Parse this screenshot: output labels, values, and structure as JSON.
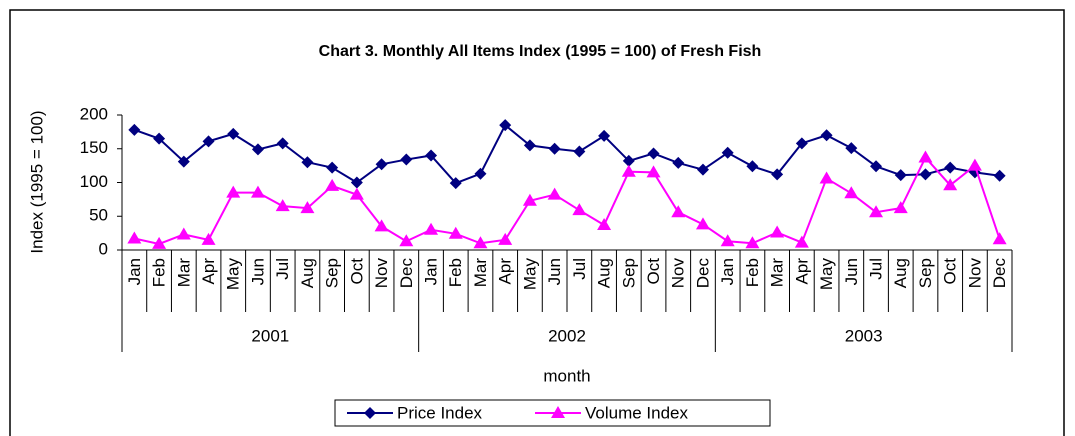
{
  "chart_data": {
    "type": "line",
    "title": "Chart 3.  Monthly All Items Index (1995 = 100) of Fresh Fish",
    "y_label": "Index (1995 = 100)",
    "x_label": "month",
    "categories": [
      "Jan",
      "Feb",
      "Mar",
      "Apr",
      "May",
      "Jun",
      "Jul",
      "Aug",
      "Sep",
      "Oct",
      "Nov",
      "Dec",
      "Jan",
      "Feb",
      "Mar",
      "Apr",
      "May",
      "Jun",
      "Jul",
      "Aug",
      "Sep",
      "Oct",
      "Nov",
      "Dec",
      "Jan",
      "Feb",
      "Mar",
      "Apr",
      "May",
      "Jun",
      "Jul",
      "Aug",
      "Sep",
      "Oct",
      "Nov",
      "Dec"
    ],
    "groups": [
      "2001",
      "2002",
      "2003"
    ],
    "series": [
      {
        "name": "Price Index",
        "color": "#000080",
        "marker": "diamond",
        "values": [
          178,
          165,
          131,
          161,
          172,
          149,
          158,
          130,
          122,
          100,
          127,
          134,
          140,
          99,
          113,
          185,
          155,
          150,
          146,
          169,
          132,
          143,
          129,
          119,
          144,
          124,
          112,
          158,
          170,
          151,
          124,
          111,
          112,
          122,
          115,
          110
        ]
      },
      {
        "name": "Volume Index",
        "color": "#ff00ff",
        "marker": "triangle",
        "values": [
          17,
          9,
          23,
          15,
          85,
          85,
          65,
          62,
          95,
          82,
          35,
          13,
          30,
          24,
          10,
          15,
          73,
          82,
          59,
          37,
          116,
          115,
          56,
          38,
          13,
          10,
          26,
          11,
          106,
          84,
          56,
          62,
          137,
          96,
          125,
          16
        ]
      }
    ],
    "ylim": [
      0,
      200
    ],
    "yticks": [
      0,
      50,
      100,
      150,
      200
    ],
    "legend": "bottom"
  }
}
